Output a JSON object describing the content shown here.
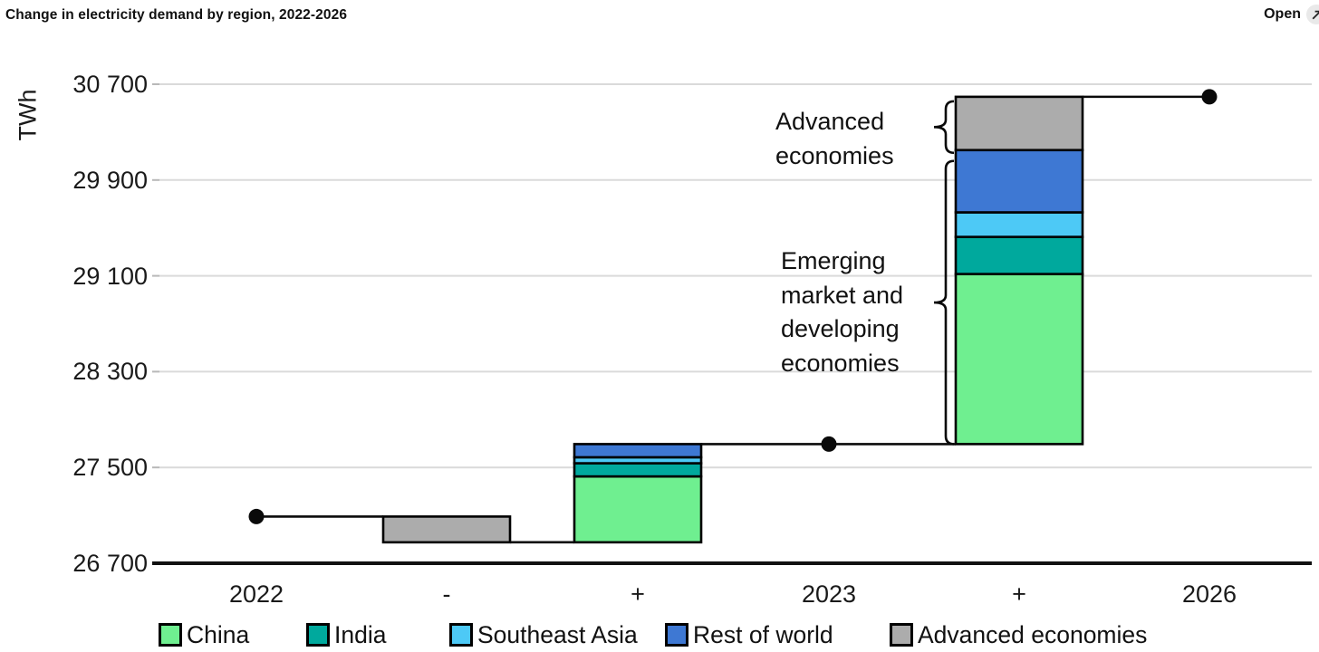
{
  "header": {
    "title": "Change in electricity demand by region, 2022-2026",
    "open_label": "Open",
    "open_icon": "external-link-arrow"
  },
  "chart_data": {
    "type": "waterfall-stacked-bar",
    "title": "Change in electricity demand by region, 2022-2026",
    "unit": "TWh",
    "ylabel": "TWh",
    "ylim": [
      26700,
      30700
    ],
    "grid": true,
    "yticks": [
      {
        "value": 26700,
        "label": "26 700"
      },
      {
        "value": 27500,
        "label": "27 500"
      },
      {
        "value": 28300,
        "label": "28 300"
      },
      {
        "value": 29100,
        "label": "29 100"
      },
      {
        "value": 29900,
        "label": "29 900"
      },
      {
        "value": 30700,
        "label": "30 700"
      }
    ],
    "x_labels": [
      "2022",
      "-",
      "+",
      "2023",
      "+",
      "2026"
    ],
    "series_colors": {
      "China": "#6FEF90",
      "India": "#00A99D",
      "Southeast Asia": "#4DC9F6",
      "Rest of world": "#3E78D3",
      "Advanced economies": "#ACACAC"
    },
    "markers": [
      {
        "x_index": 0,
        "x_label": "2022",
        "value": 27090
      },
      {
        "x_index": 3,
        "x_label": "2023",
        "value": 27695
      },
      {
        "x_index": 5,
        "x_label": "2026",
        "value": 30595
      }
    ],
    "bars": [
      {
        "x_index": 1,
        "direction": "decrease",
        "start_level": 27090,
        "end_level": 26875,
        "segments": [
          {
            "name": "Advanced economies",
            "value": 215
          }
        ]
      },
      {
        "x_index": 2,
        "direction": "increase",
        "start_level": 26875,
        "end_level": 27695,
        "segments": [
          {
            "name": "China",
            "value": 550
          },
          {
            "name": "India",
            "value": 110
          },
          {
            "name": "Southeast Asia",
            "value": 50
          },
          {
            "name": "Rest of world",
            "value": 110
          }
        ]
      },
      {
        "x_index": 4,
        "direction": "increase",
        "start_level": 27695,
        "end_level": 30595,
        "segments": [
          {
            "name": "China",
            "value": 1420
          },
          {
            "name": "India",
            "value": 310
          },
          {
            "name": "Southeast Asia",
            "value": 205
          },
          {
            "name": "Rest of world",
            "value": 520
          },
          {
            "name": "Advanced economies",
            "value": 445
          }
        ]
      }
    ],
    "annotations": [
      {
        "id": "advanced-economies",
        "lines": [
          "Advanced",
          "economies"
        ],
        "target": {
          "bar_index": 2,
          "segments": [
            "Advanced economies"
          ]
        }
      },
      {
        "id": "emerging-economies",
        "lines": [
          "Emerging",
          "market and",
          "developing",
          "economies"
        ],
        "target": {
          "bar_index": 2,
          "segments": [
            "China",
            "India",
            "Southeast Asia",
            "Rest of world"
          ]
        }
      }
    ],
    "legend_position": "bottom",
    "legend": [
      {
        "label": "China",
        "color": "#6FEF90"
      },
      {
        "label": "India",
        "color": "#00A99D"
      },
      {
        "label": "Southeast Asia",
        "color": "#4DC9F6"
      },
      {
        "label": "Rest of world",
        "color": "#3E78D3"
      },
      {
        "label": "Advanced economies",
        "color": "#ACACAC"
      }
    ]
  }
}
